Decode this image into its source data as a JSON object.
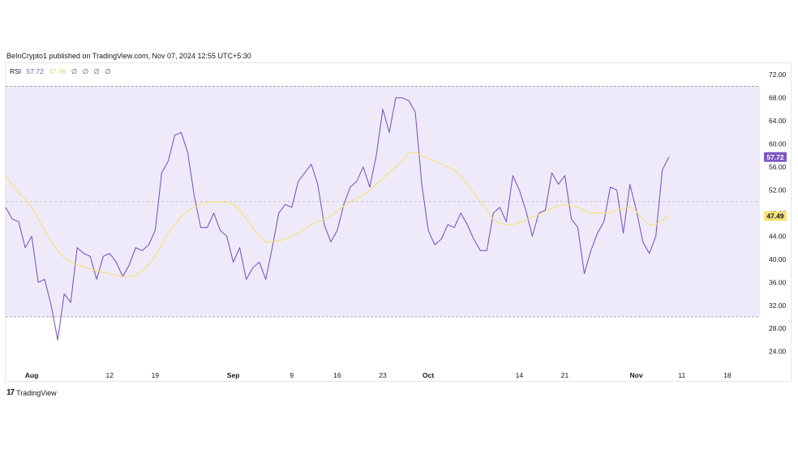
{
  "header": {
    "published": "BeInCrypto1 published on TradingView.com, Nov 07, 2024 12:55 UTC+5:30"
  },
  "legend": {
    "name": "RSI",
    "rsi_value": "57.72",
    "ma_value": "47.49",
    "extras": [
      "∅",
      "∅",
      "∅",
      "∅"
    ]
  },
  "footer": {
    "logo_mark": "17",
    "brand": "TradingView"
  },
  "colors": {
    "rsi": "#7e57c2",
    "ma": "#f5e27a",
    "band": "#efeafa",
    "band_border": "#9b9b9b",
    "mid_line": "#b9b9b9",
    "ma_tag": "#f5e27a"
  },
  "chart_data": {
    "type": "line",
    "title": "",
    "xlabel": "",
    "ylabel": "",
    "ylim": [
      21,
      74
    ],
    "y_ticks": [
      "72.00",
      "68.00",
      "64.00",
      "60.00",
      "56.00",
      "52.00",
      "48.00",
      "44.00",
      "40.00",
      "36.00",
      "32.00",
      "28.00",
      "24.00"
    ],
    "y_tick_values": [
      72,
      68,
      64,
      60,
      56,
      52,
      48,
      44,
      40,
      36,
      32,
      28,
      24
    ],
    "x_tick_labels": [
      "Aug",
      "12",
      "19",
      "Sep",
      "9",
      "16",
      "23",
      "Oct",
      "14",
      "21",
      "Nov",
      "11",
      "18"
    ],
    "x_tick_days": [
      0,
      12,
      19,
      31,
      40,
      47,
      54,
      61,
      75,
      82,
      93,
      100,
      107
    ],
    "x_tick_bold": [
      true,
      false,
      false,
      true,
      false,
      false,
      false,
      true,
      false,
      false,
      true,
      false,
      false
    ],
    "bands": {
      "upper": 70,
      "middle": 50,
      "lower": 30
    },
    "last_values": {
      "rsi": "57.72",
      "ma": "47.49"
    },
    "series": [
      {
        "name": "RSI",
        "x": [
          -4,
          -3,
          -2,
          -1,
          0,
          1,
          2,
          3,
          4,
          5,
          6,
          7,
          8,
          9,
          10,
          11,
          12,
          13,
          14,
          15,
          16,
          17,
          18,
          19,
          20,
          21,
          22,
          23,
          24,
          25,
          26,
          27,
          28,
          29,
          30,
          31,
          32,
          33,
          34,
          35,
          36,
          37,
          38,
          39,
          40,
          41,
          42,
          43,
          44,
          45,
          46,
          47,
          48,
          49,
          50,
          51,
          52,
          53,
          54,
          55,
          56,
          57,
          58,
          59,
          60,
          61,
          62,
          63,
          64,
          65,
          66,
          67,
          68,
          69,
          70,
          71,
          72,
          73,
          74,
          75,
          76,
          77,
          78,
          79,
          80,
          81,
          82,
          83,
          84,
          85,
          86,
          87,
          88,
          89,
          90,
          91,
          92,
          93,
          94,
          95,
          96,
          97,
          98
        ],
        "y": [
          49,
          47,
          46.5,
          42,
          44,
          36,
          36.5,
          32,
          26,
          34,
          32.5,
          42,
          41,
          40.5,
          36.5,
          40.5,
          41,
          39.5,
          37,
          39,
          42,
          41.5,
          42.5,
          45,
          55,
          57,
          61.5,
          62,
          58.5,
          51,
          45.5,
          45.5,
          48,
          45,
          44,
          39.5,
          42,
          36.5,
          38.5,
          39.5,
          36.5,
          42,
          48,
          49.5,
          49,
          53.5,
          55,
          56.5,
          53,
          46,
          43,
          45,
          49.5,
          52.5,
          53.5,
          56,
          52.5,
          58,
          66,
          62,
          68,
          68,
          67.5,
          65.5,
          53,
          45,
          42.5,
          43.5,
          46,
          45.5,
          48,
          46,
          43.5,
          41.5,
          41.5,
          48,
          49,
          46.5,
          54.5,
          52,
          48.5,
          44,
          48,
          48.5,
          55,
          53,
          54.5,
          47,
          45.5,
          37.5,
          41.5,
          44.5,
          46.5,
          52.5,
          52,
          44.5,
          53,
          48.5,
          43,
          41,
          44,
          55.5,
          57.72
        ]
      },
      {
        "name": "",
        "x": [
          -4,
          -3,
          -2,
          -1,
          0,
          1,
          2,
          3,
          4,
          5,
          6,
          7,
          8,
          9,
          10,
          11,
          12,
          13,
          14,
          15,
          16,
          17,
          18,
          19,
          20,
          21,
          22,
          23,
          24,
          25,
          26,
          27,
          28,
          29,
          30,
          31,
          32,
          33,
          34,
          35,
          36,
          37,
          38,
          39,
          40,
          41,
          42,
          43,
          44,
          45,
          46,
          47,
          48,
          49,
          50,
          51,
          52,
          53,
          54,
          55,
          56,
          57,
          58,
          59,
          60,
          61,
          62,
          63,
          64,
          65,
          66,
          67,
          68,
          69,
          70,
          71,
          72,
          73,
          74,
          75,
          76,
          77,
          78,
          79,
          80,
          81,
          82,
          83,
          84,
          85,
          86,
          87,
          88,
          89,
          90,
          91,
          92,
          93,
          94,
          95,
          96,
          97,
          98
        ],
        "y": [
          54.5,
          53,
          51.5,
          50.5,
          49,
          47,
          45,
          43,
          41.5,
          40.3,
          39.5,
          39,
          38.7,
          38.3,
          38,
          37.7,
          37.5,
          37.2,
          37,
          37,
          37.2,
          38,
          39,
          40.5,
          42.5,
          44.5,
          46,
          47.5,
          48.3,
          49,
          49.5,
          49.8,
          50,
          50,
          49.8,
          49.5,
          48.5,
          47,
          45.5,
          44,
          43,
          43,
          43.2,
          43.5,
          44,
          44.5,
          45.2,
          46,
          46.5,
          47,
          47.5,
          48.3,
          49.2,
          50,
          50.5,
          51.2,
          52,
          53,
          54,
          55,
          56,
          57,
          58.5,
          58.5,
          58,
          57.5,
          57,
          56.5,
          56,
          55.5,
          54.5,
          53,
          51.5,
          50,
          48.5,
          47,
          46.2,
          46,
          46,
          46.3,
          46.8,
          47.3,
          47.8,
          48.3,
          48.8,
          49.3,
          49.5,
          49.3,
          49,
          48.5,
          48,
          48,
          48,
          48,
          48.5,
          48.8,
          49,
          48.3,
          47,
          46,
          46,
          46.8,
          47.49
        ]
      }
    ],
    "grid": false,
    "legend": "top-left"
  }
}
